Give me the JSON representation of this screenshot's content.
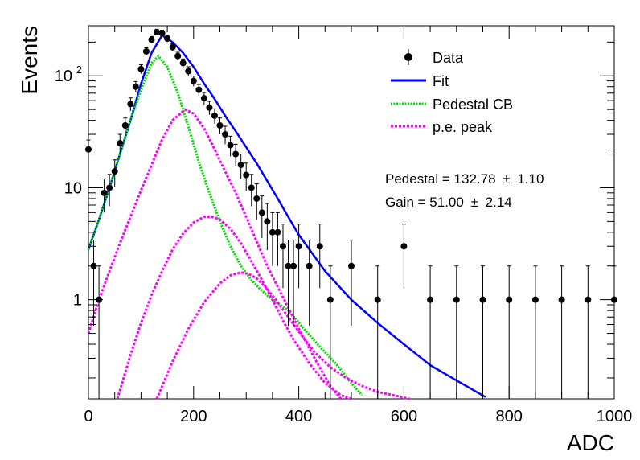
{
  "chart_data": {
    "type": "scatter",
    "title": "",
    "xlabel": "ADC",
    "ylabel": "Events",
    "xlim": [
      0,
      1000
    ],
    "ylim": [
      0.13,
      280
    ],
    "yscale": "log",
    "x_ticks": [
      "0",
      "200",
      "400",
      "600",
      "800",
      "1000"
    ],
    "y_ticks": [
      {
        "value": 1,
        "base": "1",
        "exp": ""
      },
      {
        "value": 10,
        "base": "10",
        "exp": ""
      },
      {
        "value": 100,
        "base": "10",
        "exp": "2"
      }
    ],
    "legend": {
      "placement": "top-right",
      "entries": [
        {
          "label": "Data",
          "style": "marker",
          "color": "#000000"
        },
        {
          "label": "Fit",
          "style": "solid",
          "color": "#0000ff"
        },
        {
          "label": "Pedestal CB",
          "style": "dotted",
          "color": "#00dd00"
        },
        {
          "label": "p.e. peak",
          "style": "dotted",
          "color": "#ff00ff"
        }
      ]
    },
    "annotations": [
      {
        "label": "Pedestal = 132.78",
        "pm": "±",
        "value": "1.10"
      },
      {
        "label": "Gain = 51.00",
        "pm": "±",
        "value": "2.14"
      }
    ],
    "colors": {
      "data": "#000000",
      "fit": "#0000ff",
      "pedestal": "#00dd00",
      "pe_peak": "#ff00ff"
    },
    "series": [
      {
        "name": "Data",
        "style": "points",
        "x": [
          0,
          10,
          20,
          30,
          40,
          50,
          60,
          70,
          80,
          90,
          100,
          110,
          120,
          130,
          140,
          150,
          160,
          170,
          180,
          190,
          200,
          210,
          220,
          230,
          240,
          250,
          260,
          270,
          280,
          290,
          300,
          310,
          320,
          330,
          340,
          350,
          360,
          370,
          380,
          390,
          400,
          420,
          440,
          460,
          500,
          550,
          600,
          650,
          700,
          750,
          800,
          850,
          900,
          950,
          1000
        ],
        "y": [
          22,
          2,
          1,
          9,
          10,
          14,
          25,
          36,
          56,
          80,
          115,
          165,
          210,
          245,
          240,
          215,
          180,
          150,
          130,
          110,
          90,
          75,
          63,
          52,
          44,
          36,
          30,
          24,
          20,
          16,
          13,
          10,
          8,
          6,
          5,
          4,
          4,
          3,
          2,
          2,
          3,
          2,
          3,
          1,
          2,
          1,
          3,
          1,
          1,
          1,
          1,
          1,
          1,
          1,
          1
        ]
      },
      {
        "name": "Fit",
        "style": "solid",
        "x": [
          0,
          20,
          40,
          60,
          80,
          100,
          120,
          140,
          160,
          180,
          200,
          220,
          240,
          260,
          280,
          300,
          320,
          340,
          360,
          380,
          400,
          450,
          500,
          550,
          600,
          650,
          700,
          755
        ],
        "y": [
          2.8,
          5.2,
          10,
          20,
          40,
          85,
          160,
          230,
          200,
          160,
          120,
          85,
          62,
          44,
          32,
          23,
          16.5,
          11.5,
          8,
          5.5,
          3.8,
          1.8,
          1.0,
          0.62,
          0.4,
          0.26,
          0.19,
          0.135
        ]
      },
      {
        "name": "Pedestal CB",
        "style": "dotted",
        "x": [
          0,
          20,
          40,
          60,
          80,
          100,
          120,
          133,
          150,
          170,
          190,
          210,
          230,
          250,
          270,
          290,
          310,
          330,
          350,
          380,
          410,
          440,
          470,
          500,
          520
        ],
        "y": [
          2.8,
          5.2,
          10,
          20,
          40,
          75,
          130,
          150,
          120,
          70,
          35,
          17,
          9,
          5,
          3,
          2,
          1.5,
          1.2,
          1,
          0.8,
          0.55,
          0.38,
          0.27,
          0.18,
          0.14
        ]
      },
      {
        "name": "p.e. peak 1",
        "style": "dotted",
        "x": [
          0,
          20,
          40,
          60,
          80,
          100,
          120,
          140,
          160,
          184,
          200,
          220,
          240,
          260,
          280,
          300,
          320,
          340,
          370,
          400,
          430,
          460,
          480
        ],
        "y": [
          0.5,
          1.0,
          1.8,
          3.2,
          5.5,
          9.5,
          16,
          27,
          40,
          50,
          46,
          34,
          22,
          14,
          9,
          5.5,
          3.3,
          2.0,
          1.05,
          0.55,
          0.3,
          0.17,
          0.13
        ]
      },
      {
        "name": "p.e. peak 2",
        "style": "dotted",
        "x": [
          55,
          80,
          100,
          120,
          140,
          160,
          180,
          200,
          220,
          235,
          250,
          270,
          290,
          310,
          330,
          350,
          370,
          390,
          420,
          450,
          480,
          500
        ],
        "y": [
          0.13,
          0.32,
          0.62,
          1.1,
          1.8,
          2.8,
          3.9,
          4.9,
          5.5,
          5.5,
          5.2,
          4.3,
          3.2,
          2.2,
          1.5,
          1.0,
          0.65,
          0.44,
          0.27,
          0.18,
          0.14,
          0.12
        ]
      },
      {
        "name": "p.e. peak 3",
        "style": "dotted",
        "x": [
          130,
          160,
          190,
          220,
          250,
          270,
          290,
          305,
          320,
          340,
          360,
          380,
          400,
          430,
          460,
          490,
          520,
          550,
          580,
          610
        ],
        "y": [
          0.13,
          0.28,
          0.55,
          0.95,
          1.4,
          1.65,
          1.75,
          1.7,
          1.55,
          1.25,
          0.95,
          0.7,
          0.52,
          0.34,
          0.25,
          0.2,
          0.17,
          0.15,
          0.14,
          0.13
        ]
      }
    ]
  }
}
